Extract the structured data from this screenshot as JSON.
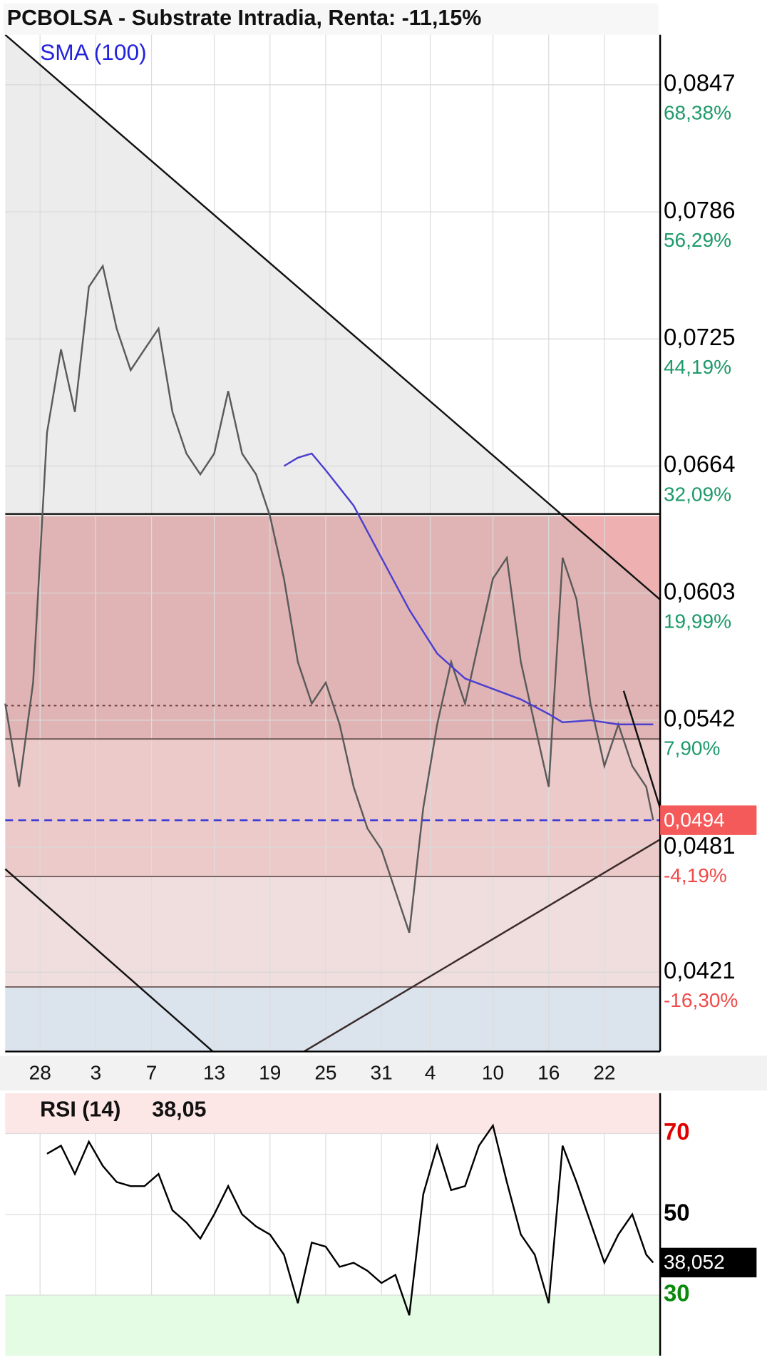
{
  "chart_data": [
    {
      "type": "line",
      "title": "PCBOLSA - Substrate Intradia, Renta: -11,15%",
      "xlim": [
        0,
        94
      ],
      "xticks": [
        {
          "value": 5,
          "label": "28"
        },
        {
          "value": 13,
          "label": "3"
        },
        {
          "value": 21,
          "label": "7"
        },
        {
          "value": 30,
          "label": "13"
        },
        {
          "value": 38,
          "label": "19"
        },
        {
          "value": 46,
          "label": "25"
        },
        {
          "value": 54,
          "label": "31"
        },
        {
          "value": 61,
          "label": "4"
        },
        {
          "value": 70,
          "label": "10"
        },
        {
          "value": 78,
          "label": "16"
        },
        {
          "value": 86,
          "label": "22"
        }
      ],
      "ylim": [
        0.0383,
        0.0871
      ],
      "yticks": [
        {
          "value": 0.0847,
          "label": "0,0847"
        },
        {
          "value": 0.0786,
          "label": "0,0786"
        },
        {
          "value": 0.0725,
          "label": "0,0725"
        },
        {
          "value": 0.0664,
          "label": "0,0664"
        },
        {
          "value": 0.0603,
          "label": "0,0603"
        },
        {
          "value": 0.0542,
          "label": "0,0542"
        },
        {
          "value": 0.0481,
          "label": "0,0481"
        },
        {
          "value": 0.0421,
          "label": "0,0421"
        }
      ],
      "y_pct_labels": [
        "68,38%",
        "56,29%",
        "44,19%",
        "32,09%",
        "19,99%",
        "7,90%",
        "-4,19%",
        "-16,30%"
      ],
      "grid": true,
      "x": [
        0,
        2,
        4,
        6,
        8,
        10,
        12,
        14,
        16,
        18,
        20,
        22,
        24,
        26,
        28,
        30,
        32,
        34,
        36,
        38,
        40,
        42,
        44,
        46,
        48,
        50,
        52,
        54,
        56,
        58,
        60,
        62,
        64,
        66,
        68,
        70,
        72,
        74,
        76,
        78,
        80,
        82,
        84,
        86,
        88,
        90,
        92,
        93
      ],
      "values": [
        0.055,
        0.051,
        0.056,
        0.068,
        0.072,
        0.069,
        0.075,
        0.076,
        0.073,
        0.071,
        0.072,
        0.073,
        0.069,
        0.067,
        0.066,
        0.067,
        0.07,
        0.067,
        0.066,
        0.064,
        0.061,
        0.057,
        0.055,
        0.056,
        0.054,
        0.051,
        0.049,
        0.048,
        0.046,
        0.044,
        0.05,
        0.054,
        0.057,
        0.055,
        0.058,
        0.061,
        0.062,
        0.057,
        0.054,
        0.051,
        0.062,
        0.06,
        0.055,
        0.052,
        0.054,
        0.052,
        0.051,
        0.0494
      ],
      "color": "#5a5a5a",
      "sma": {
        "name": "SMA (100)",
        "color": "#4b3fd0",
        "x": [
          40,
          42,
          44,
          46,
          50,
          54,
          58,
          62,
          66,
          70,
          74,
          78,
          80,
          84,
          88,
          93
        ],
        "values": [
          0.0664,
          0.0668,
          0.067,
          0.0662,
          0.0645,
          0.062,
          0.0595,
          0.0574,
          0.0562,
          0.0557,
          0.0552,
          0.0545,
          0.0541,
          0.0542,
          0.054,
          0.054
        ]
      },
      "levels": [
        {
          "value": 0.0641,
          "style": "solid"
        },
        {
          "value": 0.0549,
          "style": "dotted"
        },
        {
          "value": 0.0533,
          "style": "solid"
        },
        {
          "value": 0.0467,
          "style": "solid"
        },
        {
          "value": 0.0414,
          "style": "solid"
        }
      ],
      "last_price": {
        "value": 0.0494,
        "label": "0,0494"
      }
    },
    {
      "type": "line",
      "title": "RSI (14)",
      "current_label": "38,05",
      "xlim": [
        0,
        94
      ],
      "ylim": [
        15,
        80
      ],
      "yticks": [
        70,
        50,
        30
      ],
      "ytick_colors": [
        "#e00000",
        "#000000",
        "#0a8a0a"
      ],
      "x": [
        6,
        8,
        10,
        12,
        14,
        16,
        18,
        20,
        22,
        24,
        26,
        28,
        30,
        32,
        34,
        36,
        38,
        40,
        42,
        44,
        46,
        48,
        50,
        52,
        54,
        56,
        58,
        60,
        62,
        64,
        66,
        68,
        70,
        72,
        74,
        76,
        78,
        80,
        82,
        84,
        86,
        88,
        90,
        92,
        93
      ],
      "values": [
        65,
        67,
        60,
        68,
        62,
        58,
        57,
        57,
        60,
        51,
        48,
        44,
        50,
        57,
        50,
        47,
        45,
        40,
        28,
        43,
        42,
        37,
        38,
        36,
        33,
        35,
        25,
        55,
        67,
        56,
        57,
        67,
        72,
        58,
        45,
        40,
        28,
        67,
        58,
        48,
        38,
        45,
        50,
        40,
        38.052
      ],
      "color": "#000000",
      "last": {
        "value": 38.052,
        "label": "38,052"
      }
    }
  ]
}
